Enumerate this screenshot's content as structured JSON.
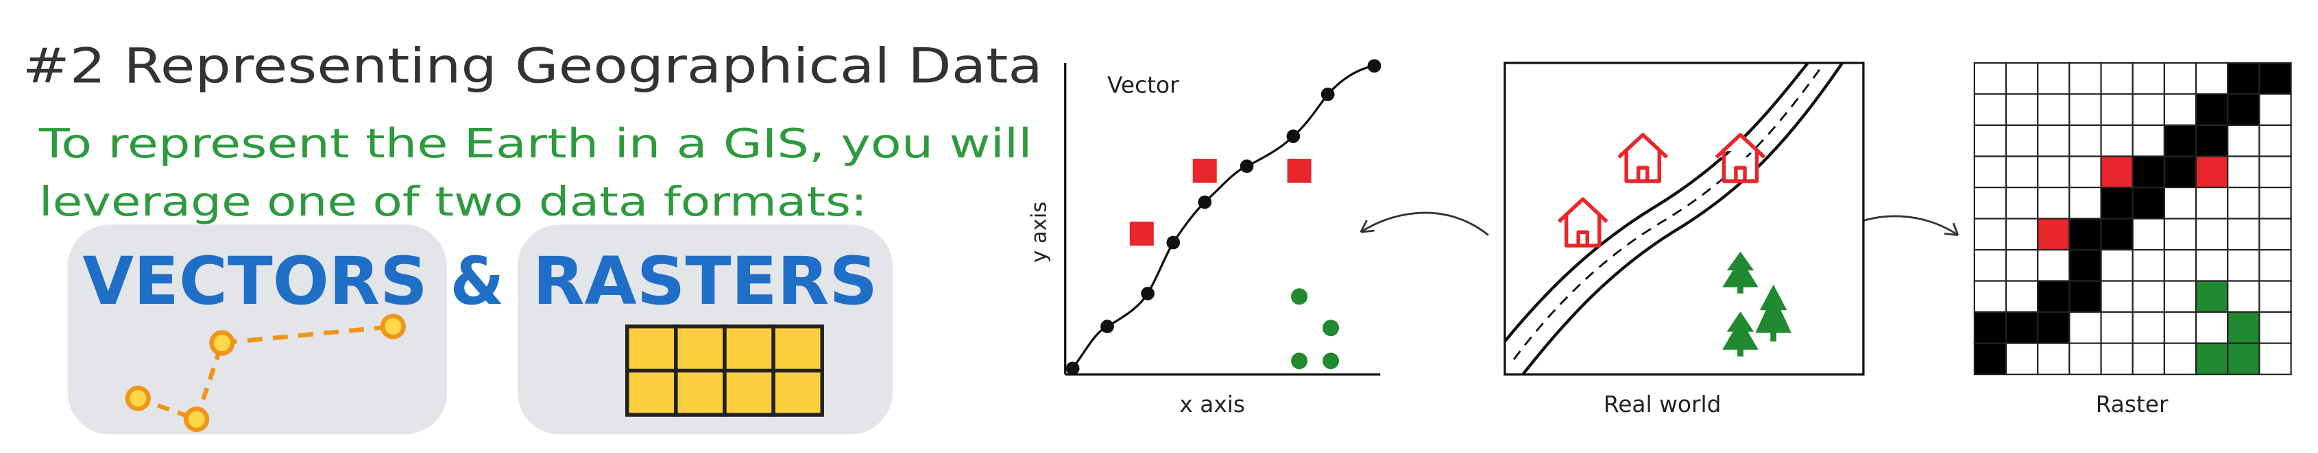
{
  "header": {
    "title": "#2 Representing Geographical Data",
    "subtitle_lines": [
      "To represent the Earth in a GIS, you will",
      "leverage one of two data formats:"
    ]
  },
  "formats": {
    "vectors": "VECTORS",
    "ampersand": "&",
    "rasters": "RASTERS"
  },
  "panels": {
    "vector": {
      "label": "Vector",
      "y_axis": "y axis",
      "x_axis": "x axis"
    },
    "real_world": {
      "label": "Real world"
    },
    "raster": {
      "label": "Raster"
    }
  }
}
